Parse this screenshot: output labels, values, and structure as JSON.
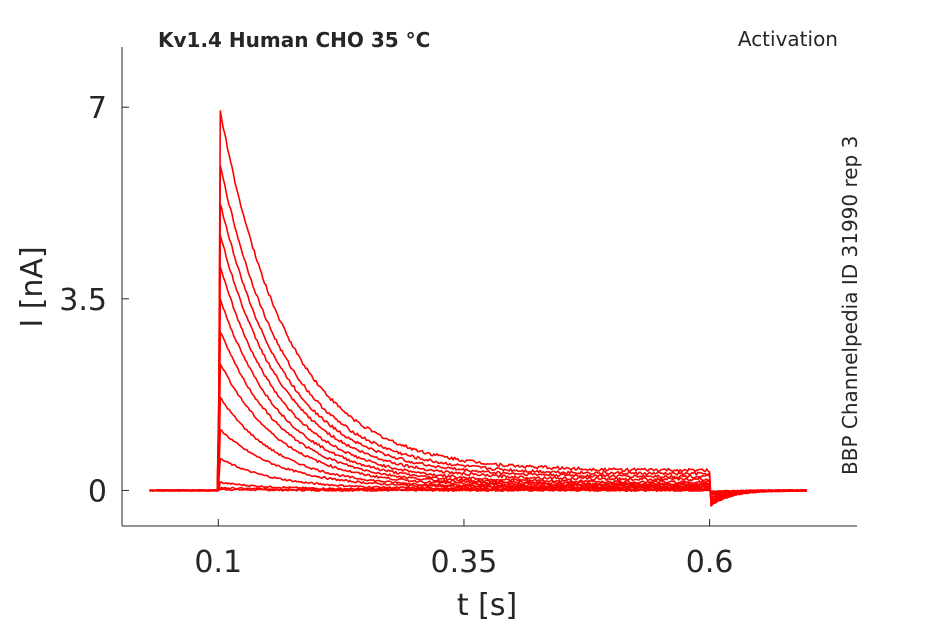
{
  "chart_data": {
    "type": "line",
    "title": "Kv1.4  Human  CHO  35 °C",
    "protocol": "Activation",
    "annotation": "BBP Channelpedia ID 31990 rep 3",
    "xlabel": "t [s]",
    "ylabel": "I [nA]",
    "xlim": [
      0.002,
      0.75
    ],
    "ylim": [
      -0.65,
      8.1
    ],
    "xticks": [
      0.1,
      0.35,
      0.6
    ],
    "xtick_labels": [
      "0.1",
      "0.35",
      "0.6"
    ],
    "yticks": [
      0,
      3.5,
      7
    ],
    "ytick_labels": [
      "0",
      "3.5",
      "7"
    ],
    "grid": false,
    "legend": "none",
    "line_color": "#ff0000",
    "step_on": 0.1,
    "step_off": 0.6,
    "record_start": 0.03,
    "record_end": 0.7,
    "series": [
      {
        "peak": 0.02,
        "tau": 0.05,
        "steady": 0.0,
        "tail": -0.02
      },
      {
        "peak": 0.05,
        "tau": 0.05,
        "steady": 0.01,
        "tail": -0.03
      },
      {
        "peak": 0.15,
        "tau": 0.05,
        "steady": 0.02,
        "tail": -0.05
      },
      {
        "peak": 0.6,
        "tau": 0.055,
        "steady": 0.03,
        "tail": -0.08
      },
      {
        "peak": 1.15,
        "tau": 0.06,
        "steady": 0.05,
        "tail": -0.12
      },
      {
        "peak": 1.75,
        "tau": 0.06,
        "steady": 0.06,
        "tail": -0.15
      },
      {
        "peak": 2.4,
        "tau": 0.062,
        "steady": 0.08,
        "tail": -0.18
      },
      {
        "peak": 3.0,
        "tau": 0.063,
        "steady": 0.1,
        "tail": -0.2
      },
      {
        "peak": 3.6,
        "tau": 0.064,
        "steady": 0.12,
        "tail": -0.22
      },
      {
        "peak": 4.2,
        "tau": 0.065,
        "steady": 0.15,
        "tail": -0.25
      },
      {
        "peak": 4.8,
        "tau": 0.066,
        "steady": 0.2,
        "tail": -0.27
      },
      {
        "peak": 5.4,
        "tau": 0.067,
        "steady": 0.25,
        "tail": -0.28
      },
      {
        "peak": 6.1,
        "tau": 0.068,
        "steady": 0.3,
        "tail": -0.3
      },
      {
        "peak": 7.1,
        "tau": 0.07,
        "steady": 0.36,
        "tail": -0.3
      }
    ]
  }
}
